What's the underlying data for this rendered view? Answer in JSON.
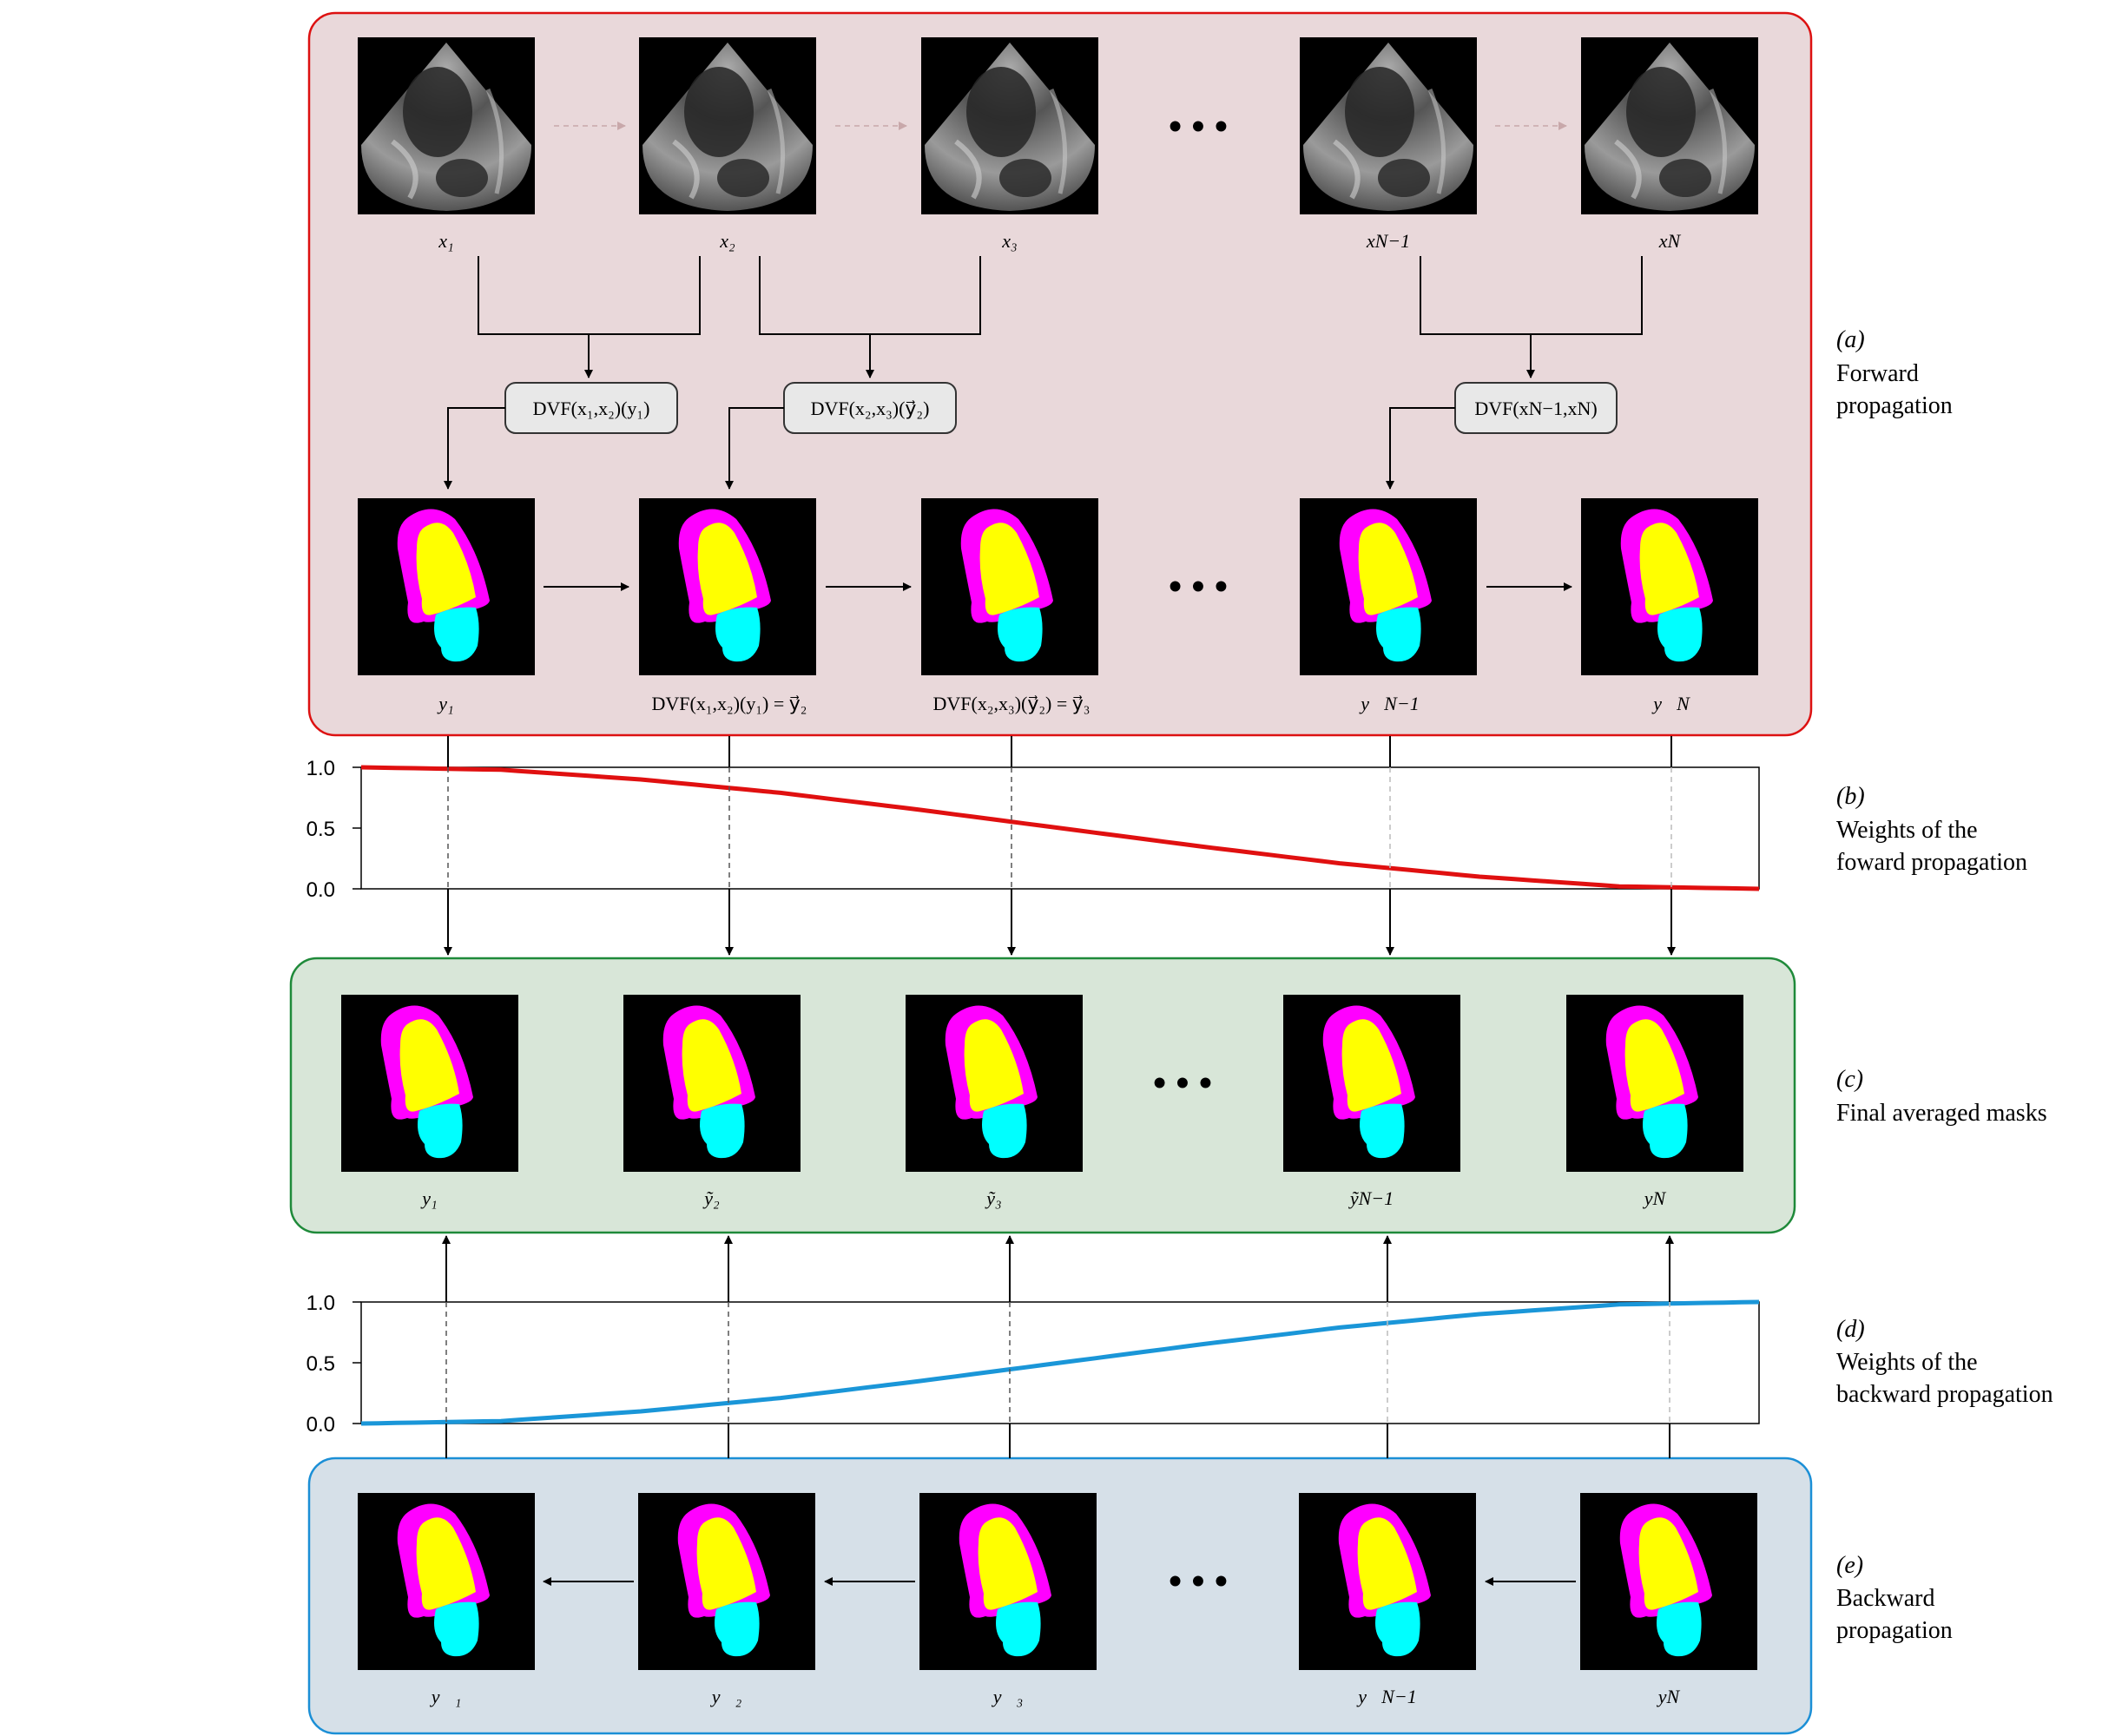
{
  "panels": {
    "a": {
      "letter": "(a)",
      "line1": "Forward",
      "line2": "propagation"
    },
    "b": {
      "letter": "(b)",
      "line1": "Weights of the",
      "line2": "foward propagation"
    },
    "c": {
      "letter": "(c)",
      "line1": "Final averaged masks",
      "line2": ""
    },
    "d": {
      "letter": "(d)",
      "line1": "Weights of the",
      "line2": "backward propagation"
    },
    "e": {
      "letter": "(e)",
      "line1": "Backward",
      "line2": "propagation"
    }
  },
  "frames": {
    "x1": "x₁",
    "x2": "x₂",
    "x3": "x₃",
    "xN1": "xN−1",
    "xN": "xN"
  },
  "dvf_boxes": {
    "b1": "DVF(x₁,x₂)(y₁)",
    "b2": "DVF(x₂,x₃)(y⃗₂)",
    "b3": "DVF(xN−1,xN)"
  },
  "forward_masks": {
    "m1": "y₁",
    "m2": "DVF(x₁,x₂)(y₁) = y⃗₂",
    "m3": "DVF(x₂,x₃)(y⃗₂) = y⃗₃",
    "m4": "y⃗N−1",
    "m5": "y⃗N"
  },
  "final_masks": {
    "m1": "y₁",
    "m2": "ỹ₂",
    "m3": "ỹ₃",
    "m4": "ỹN−1",
    "m5": "yN"
  },
  "backward_masks": {
    "m1": "y⃖₁",
    "m2": "y⃖₂",
    "m3": "y⃖₃",
    "m4": "y⃖N−1",
    "m5": "yN"
  },
  "ellipsis": "• • •",
  "colors": {
    "forward_panel_bg": "#e9d8da",
    "forward_panel_border": "#dd1111",
    "final_panel_bg": "#d8e6d8",
    "final_panel_border": "#1f8a3a",
    "backward_panel_bg": "#d6e0e8",
    "backward_panel_border": "#1b8fd6",
    "forward_curve": "#e01010",
    "backward_curve": "#1a96d8",
    "mask_outer": "#ff00ff",
    "mask_inner": "#ffff00",
    "mask_atrium": "#00ffff"
  },
  "chart_data": [
    {
      "type": "line",
      "title": "",
      "xlabel": "",
      "ylabel": "",
      "ylim": [
        0,
        1
      ],
      "yticks": [
        "0.0",
        "0.5",
        "1.0"
      ],
      "x": [
        0,
        0.1,
        0.2,
        0.3,
        0.4,
        0.5,
        0.6,
        0.7,
        0.8,
        0.9,
        1.0
      ],
      "series": [
        {
          "name": "",
          "values": [
            1.0,
            0.98,
            0.9,
            0.79,
            0.65,
            0.5,
            0.35,
            0.21,
            0.1,
            0.02,
            0.0
          ]
        }
      ]
    },
    {
      "type": "line",
      "title": "",
      "xlabel": "",
      "ylabel": "",
      "ylim": [
        0,
        1
      ],
      "yticks": [
        "0.0",
        "0.5",
        "1.0"
      ],
      "x": [
        0,
        0.1,
        0.2,
        0.3,
        0.4,
        0.5,
        0.6,
        0.7,
        0.8,
        0.9,
        1.0
      ],
      "series": [
        {
          "name": "",
          "values": [
            0.0,
            0.02,
            0.1,
            0.21,
            0.35,
            0.5,
            0.65,
            0.79,
            0.9,
            0.98,
            1.0
          ]
        }
      ]
    }
  ]
}
